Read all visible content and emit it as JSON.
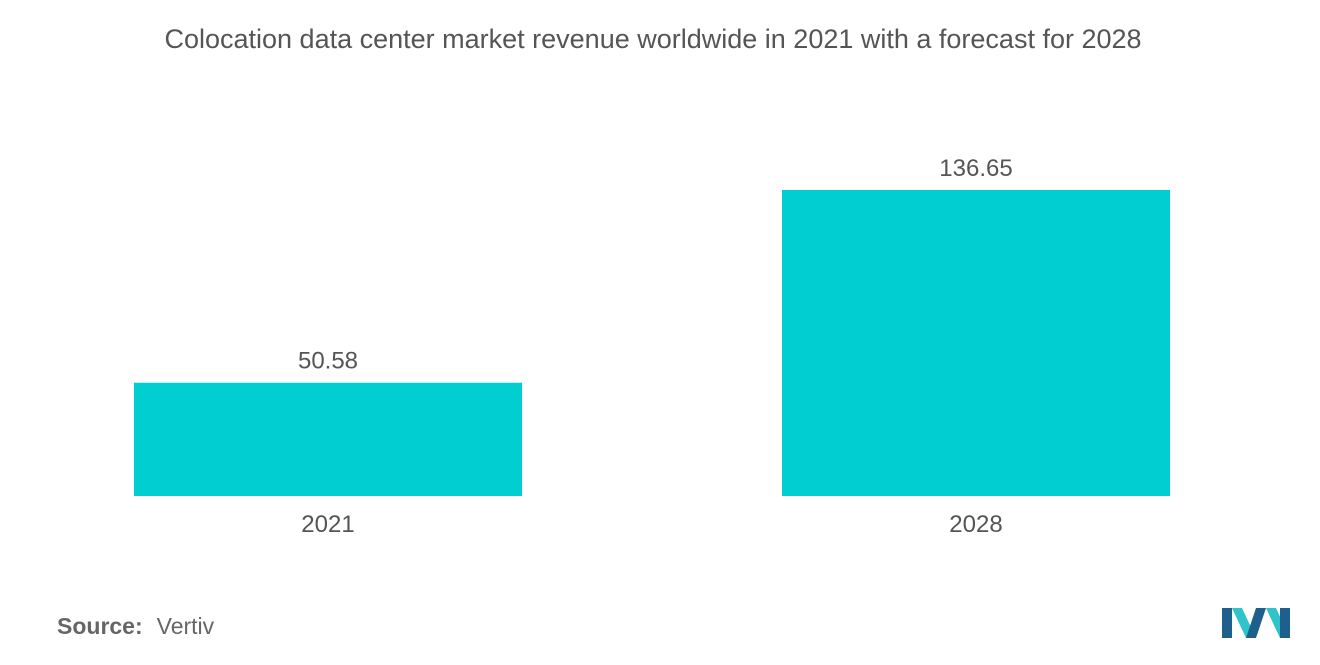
{
  "title": "Colocation data center market revenue worldwide in 2021 with a forecast for 2028",
  "source": {
    "label": "Source:",
    "value": "Vertiv"
  },
  "colors": {
    "bar": "#00CED1",
    "text": "#555555",
    "logo_dark": "#1f5f8b",
    "logo_light": "#2ec4c9"
  },
  "logo": {
    "icon": "mordor-intelligence-logo"
  },
  "chart_data": {
    "type": "bar",
    "categories": [
      "2021",
      "2028"
    ],
    "values": [
      50.58,
      136.65
    ],
    "value_labels": [
      "50.58",
      "136.65"
    ],
    "title": "Colocation data center market revenue worldwide in 2021 with a forecast for 2028",
    "xlabel": "",
    "ylabel": "",
    "ylim": [
      0,
      136.65
    ],
    "grid": false,
    "legend": "none"
  }
}
